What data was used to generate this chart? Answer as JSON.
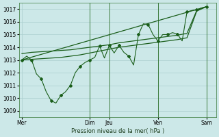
{
  "xlabel": "Pression niveau de la mer( hPa )",
  "ylim": [
    1008.5,
    1017.5
  ],
  "yticks": [
    1009,
    1010,
    1011,
    1012,
    1013,
    1014,
    1015,
    1016,
    1017
  ],
  "xtick_labels": [
    "Mer",
    "Dim",
    "Jeu",
    "Ven",
    "Sam"
  ],
  "xtick_positions": [
    0,
    7,
    9,
    14,
    19
  ],
  "xlim": [
    -0.3,
    20.0
  ],
  "background_color": "#cce8e8",
  "grid_color": "#aacece",
  "line_color": "#1a5e1a",
  "vline_color": "#3a7a3a",
  "vlines_x": [
    7,
    9,
    14,
    19
  ],
  "diag_line": {
    "x": [
      0,
      19
    ],
    "y": [
      1013.0,
      1017.2
    ]
  },
  "smooth_line1": {
    "x": [
      0,
      1,
      2,
      3,
      4,
      5,
      6,
      7,
      8,
      9,
      10,
      11,
      12,
      13,
      14,
      15,
      16,
      17,
      18,
      19
    ],
    "y": [
      1013.5,
      1013.6,
      1013.65,
      1013.7,
      1013.75,
      1013.8,
      1013.9,
      1014.0,
      1014.1,
      1014.2,
      1014.35,
      1014.45,
      1014.55,
      1014.65,
      1014.75,
      1014.85,
      1014.95,
      1015.1,
      1016.9,
      1017.2
    ]
  },
  "smooth_line2": {
    "x": [
      0,
      1,
      2,
      3,
      4,
      5,
      6,
      7,
      8,
      9,
      10,
      11,
      12,
      13,
      14,
      15,
      16,
      17,
      18,
      19
    ],
    "y": [
      1013.0,
      1013.05,
      1013.1,
      1013.15,
      1013.2,
      1013.3,
      1013.4,
      1013.55,
      1013.7,
      1013.85,
      1014.0,
      1014.1,
      1014.2,
      1014.3,
      1014.4,
      1014.5,
      1014.6,
      1014.75,
      1016.85,
      1017.2
    ]
  },
  "wavy_x": [
    0,
    0.5,
    1.0,
    1.5,
    2.0,
    2.5,
    3.0,
    3.5,
    4.0,
    4.5,
    5.0,
    5.5,
    6.0,
    6.5,
    7.0,
    7.5,
    8.0,
    8.5,
    9.0,
    9.5,
    10.0,
    10.5,
    11.0,
    11.5,
    12.0,
    12.5,
    13.0,
    13.5,
    14.0,
    14.5,
    15.0,
    15.5,
    16.0,
    16.5,
    17.0,
    17.5,
    18.0,
    18.5,
    19.0
  ],
  "wavy_y": [
    1013.0,
    1013.3,
    1013.0,
    1011.9,
    1011.5,
    1010.5,
    1009.8,
    1009.6,
    1010.2,
    1010.5,
    1011.0,
    1012.0,
    1012.5,
    1012.8,
    1013.0,
    1013.2,
    1014.1,
    1013.15,
    1014.15,
    1013.55,
    1014.15,
    1013.6,
    1013.3,
    1012.6,
    1015.0,
    1015.85,
    1015.8,
    1015.0,
    1014.5,
    1015.0,
    1015.0,
    1015.15,
    1015.05,
    1014.5,
    1016.8,
    1016.9,
    1016.95,
    1017.1,
    1017.2
  ]
}
